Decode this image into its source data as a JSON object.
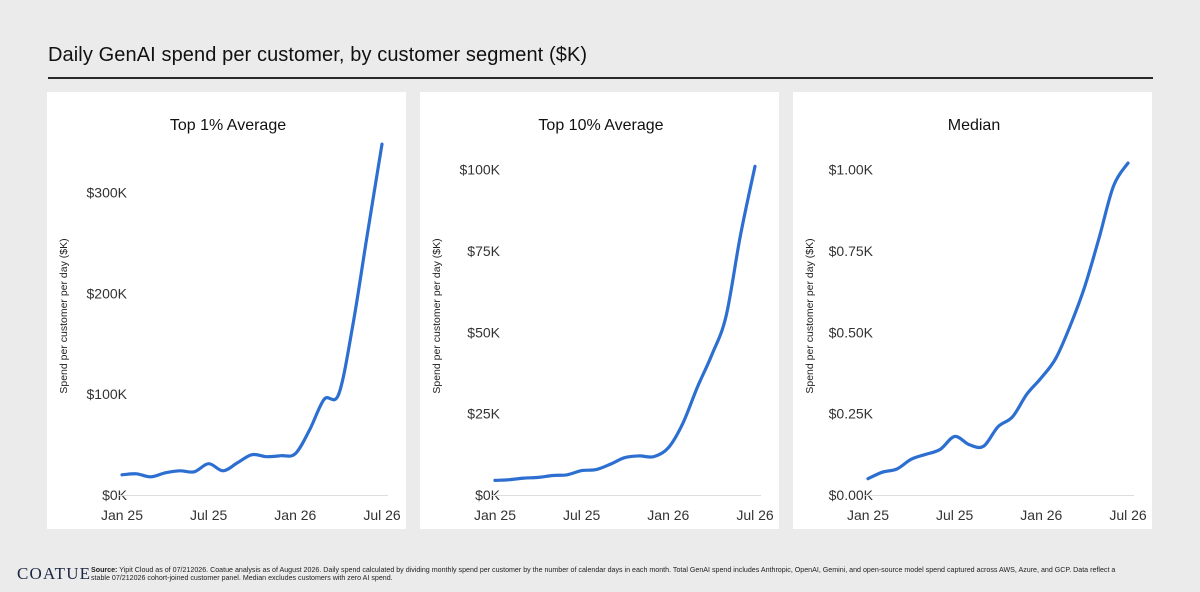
{
  "page": {
    "title": "Daily GenAI spend per customer, by customer segment ($K)"
  },
  "footer": {
    "logo": "COATUE",
    "source_label": "Source:",
    "source_text": "Yipit Cloud as of 07/212026. Coatue analysis as of August 2026. Daily spend calculated by dividing monthly spend per customer by the number of calendar days in each month. Total GenAI spend includes Anthropic, OpenAI, Gemini, and open-source model spend captured across AWS, Azure, and GCP. Data reflect a stable 07/212026 cohort-joined customer panel. Median excludes customers with zero AI spend."
  },
  "colors": {
    "line": "#2d6fd1",
    "background": "#ebebeb",
    "panel": "#ffffff"
  },
  "chart_data": [
    {
      "type": "line",
      "title": "Top 1% Average",
      "ylabel": "Spend per customer per day ($K)",
      "ylim": [
        0,
        355
      ],
      "yticks": [
        0,
        100,
        200,
        300
      ],
      "ytick_labels": [
        "$0K",
        "$100K",
        "$200K",
        "$300K"
      ],
      "x_tick_labels": [
        "Jan 25",
        "Jul 25",
        "Jan 26",
        "Jul 26"
      ],
      "x_tick_positions": [
        0,
        6,
        12,
        18
      ],
      "x": [
        0,
        1,
        2,
        3,
        4,
        5,
        6,
        7,
        8,
        9,
        10,
        11,
        12,
        13,
        14,
        15,
        16,
        17,
        18
      ],
      "values": [
        20,
        21,
        18,
        22,
        24,
        23,
        31,
        24,
        32,
        40,
        38,
        39,
        41,
        65,
        95,
        100,
        170,
        260,
        348
      ],
      "grid": false
    },
    {
      "type": "line",
      "title": "Top 10% Average",
      "ylabel": "Spend per customer per day ($K)",
      "ylim": [
        0,
        110
      ],
      "yticks": [
        0,
        25,
        50,
        75,
        100
      ],
      "ytick_labels": [
        "$0K",
        "$25K",
        "$50K",
        "$75K",
        "$100K"
      ],
      "x_tick_labels": [
        "Jan 25",
        "Jul 25",
        "Jan 26",
        "Jul 26"
      ],
      "x_tick_positions": [
        0,
        6,
        12,
        18
      ],
      "x": [
        0,
        1,
        2,
        3,
        4,
        5,
        6,
        7,
        8,
        9,
        10,
        11,
        12,
        13,
        14,
        15,
        16,
        17,
        18
      ],
      "values": [
        4.5,
        4.7,
        5.2,
        5.4,
        6.0,
        6.2,
        7.5,
        7.8,
        9.5,
        11.5,
        12.0,
        11.8,
        14.5,
        22,
        33,
        43,
        55,
        80,
        101
      ],
      "grid": false
    },
    {
      "type": "line",
      "title": "Median",
      "ylabel": "Spend per customer per day ($K)",
      "ylim": [
        0,
        1.1
      ],
      "yticks": [
        0,
        0.25,
        0.5,
        0.75,
        1.0
      ],
      "ytick_labels": [
        "$0.00K",
        "$0.25K",
        "$0.50K",
        "$0.75K",
        "$1.00K"
      ],
      "x_tick_labels": [
        "Jan 25",
        "Jul 25",
        "Jan 26",
        "Jul 26"
      ],
      "x_tick_positions": [
        0,
        6,
        12,
        18
      ],
      "x": [
        0,
        1,
        2,
        3,
        4,
        5,
        6,
        7,
        8,
        9,
        10,
        11,
        12,
        13,
        14,
        15,
        16,
        17,
        18
      ],
      "values": [
        0.05,
        0.07,
        0.08,
        0.11,
        0.125,
        0.14,
        0.18,
        0.155,
        0.15,
        0.21,
        0.24,
        0.31,
        0.36,
        0.42,
        0.52,
        0.64,
        0.79,
        0.95,
        1.02
      ],
      "grid": false
    }
  ]
}
